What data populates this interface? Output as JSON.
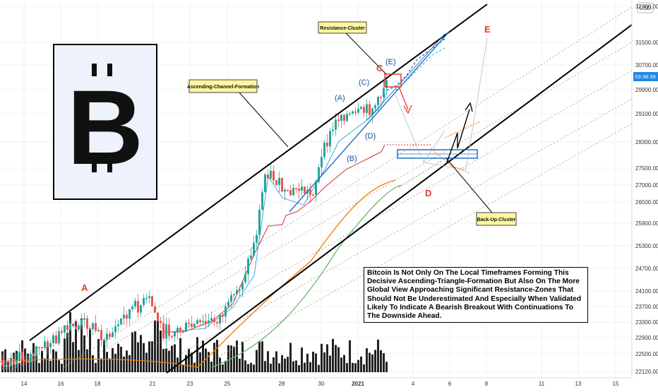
{
  "chart_data": {
    "type": "candlestick",
    "title": "",
    "currency": "USD",
    "price_ticks": [
      "32300.00",
      "31500.00",
      "30700.00",
      "29900.00",
      "29100.00",
      "28300.00",
      "27500.00",
      "27000.00",
      "26500.00",
      "25900.00",
      "25300.00",
      "24700.00",
      "24100.00",
      "23700.00",
      "23300.00",
      "22900.00",
      "22500.00",
      "22120.00"
    ],
    "current_price_label": "03:38:39",
    "date_ticks": [
      "14",
      "16",
      "18",
      "21",
      "23",
      "25",
      "28",
      "30",
      "2021",
      "4",
      "6",
      "8",
      "11",
      "13",
      "15"
    ],
    "ylim": [
      22120,
      32300
    ],
    "annotations": {
      "channel_label": "Ascending-Channel-Formation",
      "resistance_label": "Resistance-Cluster",
      "backup_label": "Back-Up-Cluster",
      "wave_labels": [
        "(A)",
        "(B)",
        "(C)",
        "(D)",
        "(E)"
      ],
      "red_labels": [
        "A",
        "C",
        "D",
        "E"
      ]
    },
    "analysis_text": "Bitcoin Is Not Only On The Local Timeframes Forming This Decisive Ascending-Triangle-Formation But Also On The More Global View Approaching Significant Resistance-Zones That Should Not Be Underestimated And Especially When Validated Likely To Indicate A Bearish Breakout With Continuations To The Downside Ahead.",
    "logo_letter": "B",
    "colors": {
      "up": "#26a69a",
      "down": "#ef5350",
      "volume": "#222222",
      "channel": "#000000",
      "ma_red": "#d32f2f",
      "ma_orange": "#f57c00",
      "ma_green": "#66bb6a",
      "wave_blue": "#1e4f9e",
      "accent_red": "#e23b2e",
      "logo_bg": "#eef3fb"
    }
  }
}
